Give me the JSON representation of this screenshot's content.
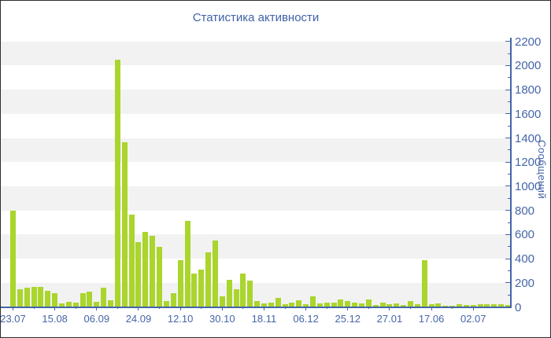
{
  "chart_data": {
    "type": "bar",
    "title": "Статистика активности",
    "ylabel": "Сообщений",
    "xlabel": "",
    "ylim": [
      0,
      2200
    ],
    "y_major_step": 200,
    "y_minor_step": 100,
    "y_tick_labels": [
      "0",
      "200",
      "400",
      "600",
      "800",
      "1000",
      "1200",
      "1400",
      "1600",
      "1800",
      "2000",
      "2200"
    ],
    "x_tick_labels": [
      "23.07",
      "15.08",
      "06.09",
      "24.09",
      "12.10",
      "30.10",
      "18.11",
      "06.12",
      "25.12",
      "27.01",
      "17.06",
      "02.07"
    ],
    "x_label_every_n_bars": 6,
    "legend": "none",
    "grid": "alternating-horizontal-bands",
    "band_color": "#f2f2f2",
    "bar_color": "#aad52d",
    "axis_color": "#4565a8",
    "title_color": "#3f62a8",
    "background_color": "#ffffff",
    "values": [
      795,
      145,
      160,
      166,
      166,
      131,
      112,
      29,
      40,
      36,
      115,
      126,
      43,
      158,
      56,
      2046,
      1362,
      765,
      538,
      625,
      592,
      495,
      49,
      115,
      386,
      712,
      277,
      310,
      451,
      549,
      87,
      223,
      147,
      277,
      217,
      49,
      28,
      39,
      78,
      21,
      39,
      54,
      21,
      87,
      28,
      33,
      33,
      61,
      49,
      35,
      28,
      65,
      17,
      35,
      26,
      30,
      17,
      48,
      26,
      385,
      26,
      30,
      13,
      13,
      20,
      15,
      15,
      20,
      23,
      20,
      20,
      15
    ]
  }
}
